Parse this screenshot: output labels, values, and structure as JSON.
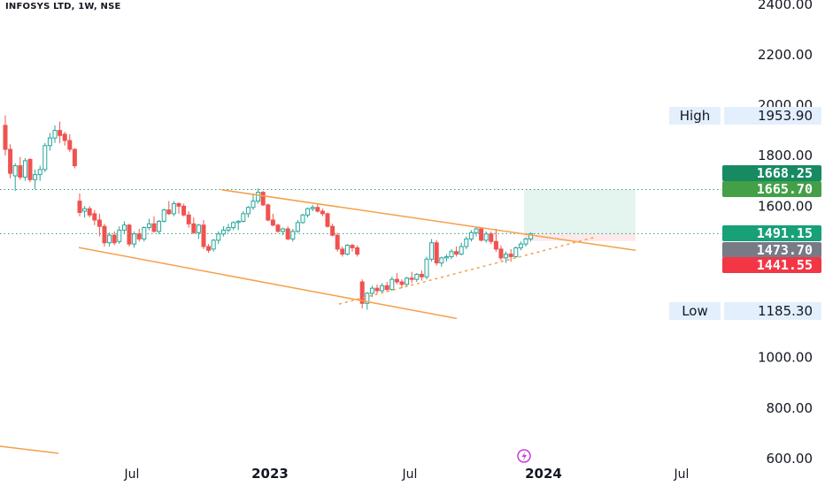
{
  "header": {
    "ticker_label": "INFOSYS LTD, 1W, NSE"
  },
  "colors": {
    "up": "#26a69a",
    "down": "#ef5350",
    "trendline": "#f5a04b",
    "tag_top": "#178a62",
    "tag_green": "#43a047",
    "tag_price": "#18a078",
    "tag_grey": "#787b86",
    "tag_red": "#f23645",
    "hl_bg": "#e3effd",
    "target_zone": "#e4f5f0",
    "stop_zone": "#fde9ea",
    "dotted_line": "#2e9d73",
    "event_icon": "#c53ed6"
  },
  "chart_data": {
    "type": "candlestick",
    "title": "INFOSYS LTD, 1W, NSE",
    "y_axis": {
      "range": [
        600,
        2420
      ],
      "ticks": [
        "2400.00",
        "2200.00",
        "2000.00",
        "1800.00",
        "1600.00",
        "1000.00",
        "800.00",
        "600.00"
      ]
    },
    "x_axis": {
      "ticks": [
        {
          "label": "Jul",
          "bold": false
        },
        {
          "label": "2023",
          "bold": true
        },
        {
          "label": "Jul",
          "bold": false
        },
        {
          "label": "2024",
          "bold": true
        },
        {
          "label": "Jul",
          "bold": false
        }
      ]
    },
    "price_tags": [
      {
        "label": "1668.25",
        "value": 1668.25,
        "color_key": "tag_top"
      },
      {
        "label": "1665.70",
        "value": 1665.7,
        "color_key": "tag_green"
      },
      {
        "label": "1491.15",
        "value": 1491.15,
        "color_key": "tag_price"
      },
      {
        "label": "1473.70",
        "value": 1473.7,
        "color_key": "tag_grey"
      },
      {
        "label": "1441.55",
        "value": 1441.55,
        "color_key": "tag_red"
      }
    ],
    "high_low": [
      {
        "name": "High",
        "value_label": "1953.90",
        "value": 1953.9
      },
      {
        "name": "Low",
        "value_label": "1185.30",
        "value": 1185.3
      }
    ],
    "horizontal_lines": [
      1665.7,
      1491.15
    ],
    "position_zone": {
      "entry": 1491.15,
      "target": 1665.7,
      "stop": 1462
    },
    "candles": [
      [
        1920,
        1960,
        1800,
        1825
      ],
      [
        1825,
        1845,
        1710,
        1730
      ],
      [
        1720,
        1770,
        1660,
        1760
      ],
      [
        1760,
        1795,
        1705,
        1715
      ],
      [
        1715,
        1790,
        1700,
        1780
      ],
      [
        1785,
        1790,
        1695,
        1705
      ],
      [
        1705,
        1745,
        1665,
        1725
      ],
      [
        1725,
        1760,
        1700,
        1745
      ],
      [
        1745,
        1850,
        1735,
        1840
      ],
      [
        1840,
        1890,
        1820,
        1870
      ],
      [
        1870,
        1920,
        1850,
        1900
      ],
      [
        1900,
        1935,
        1850,
        1880
      ],
      [
        1885,
        1895,
        1840,
        1860
      ],
      [
        1860,
        1885,
        1815,
        1825
      ],
      [
        1825,
        1830,
        1750,
        1760
      ],
      [
        1620,
        1650,
        1560,
        1575
      ],
      [
        1580,
        1600,
        1555,
        1590
      ],
      [
        1590,
        1600,
        1555,
        1565
      ],
      [
        1570,
        1585,
        1525,
        1545
      ],
      [
        1545,
        1570,
        1480,
        1520
      ],
      [
        1520,
        1530,
        1440,
        1455
      ],
      [
        1455,
        1495,
        1440,
        1485
      ],
      [
        1485,
        1500,
        1445,
        1455
      ],
      [
        1460,
        1520,
        1450,
        1505
      ],
      [
        1505,
        1540,
        1490,
        1525
      ],
      [
        1525,
        1530,
        1440,
        1450
      ],
      [
        1450,
        1500,
        1435,
        1490
      ],
      [
        1490,
        1510,
        1460,
        1470
      ],
      [
        1470,
        1520,
        1460,
        1515
      ],
      [
        1515,
        1550,
        1505,
        1530
      ],
      [
        1530,
        1560,
        1495,
        1500
      ],
      [
        1500,
        1545,
        1490,
        1540
      ],
      [
        1540,
        1590,
        1535,
        1585
      ],
      [
        1585,
        1620,
        1565,
        1570
      ],
      [
        1570,
        1620,
        1560,
        1610
      ],
      [
        1610,
        1615,
        1570,
        1600
      ],
      [
        1600,
        1610,
        1560,
        1565
      ],
      [
        1565,
        1580,
        1515,
        1530
      ],
      [
        1530,
        1555,
        1490,
        1495
      ],
      [
        1495,
        1530,
        1470,
        1525
      ],
      [
        1525,
        1545,
        1430,
        1440
      ],
      [
        1440,
        1450,
        1415,
        1425
      ],
      [
        1430,
        1470,
        1420,
        1465
      ],
      [
        1465,
        1500,
        1450,
        1490
      ],
      [
        1490,
        1520,
        1480,
        1505
      ],
      [
        1505,
        1530,
        1495,
        1515
      ],
      [
        1515,
        1540,
        1505,
        1535
      ],
      [
        1535,
        1545,
        1505,
        1540
      ],
      [
        1540,
        1580,
        1535,
        1570
      ],
      [
        1570,
        1600,
        1555,
        1595
      ],
      [
        1595,
        1650,
        1585,
        1620
      ],
      [
        1620,
        1670,
        1610,
        1655
      ],
      [
        1655,
        1660,
        1600,
        1605
      ],
      [
        1605,
        1610,
        1540,
        1545
      ],
      [
        1545,
        1570,
        1520,
        1525
      ],
      [
        1525,
        1530,
        1495,
        1500
      ],
      [
        1500,
        1515,
        1485,
        1510
      ],
      [
        1510,
        1520,
        1465,
        1470
      ],
      [
        1470,
        1510,
        1460,
        1500
      ],
      [
        1500,
        1545,
        1495,
        1535
      ],
      [
        1535,
        1570,
        1530,
        1565
      ],
      [
        1565,
        1595,
        1555,
        1590
      ],
      [
        1590,
        1605,
        1580,
        1595
      ],
      [
        1595,
        1610,
        1575,
        1580
      ],
      [
        1580,
        1590,
        1560,
        1570
      ],
      [
        1570,
        1575,
        1515,
        1520
      ],
      [
        1520,
        1530,
        1480,
        1485
      ],
      [
        1485,
        1495,
        1420,
        1430
      ],
      [
        1430,
        1440,
        1400,
        1410
      ],
      [
        1410,
        1450,
        1405,
        1445
      ],
      [
        1445,
        1450,
        1420,
        1435
      ],
      [
        1435,
        1445,
        1400,
        1410
      ],
      [
        1300,
        1310,
        1195,
        1215
      ],
      [
        1215,
        1260,
        1190,
        1255
      ],
      [
        1255,
        1285,
        1240,
        1275
      ],
      [
        1275,
        1290,
        1250,
        1265
      ],
      [
        1265,
        1295,
        1255,
        1285
      ],
      [
        1285,
        1300,
        1260,
        1270
      ],
      [
        1270,
        1320,
        1265,
        1310
      ],
      [
        1310,
        1335,
        1290,
        1300
      ],
      [
        1300,
        1310,
        1275,
        1290
      ],
      [
        1290,
        1320,
        1280,
        1315
      ],
      [
        1315,
        1340,
        1295,
        1310
      ],
      [
        1310,
        1335,
        1300,
        1330
      ],
      [
        1330,
        1345,
        1305,
        1320
      ],
      [
        1320,
        1400,
        1310,
        1390
      ],
      [
        1390,
        1470,
        1380,
        1455
      ],
      [
        1455,
        1465,
        1365,
        1375
      ],
      [
        1375,
        1400,
        1360,
        1395
      ],
      [
        1395,
        1410,
        1380,
        1400
      ],
      [
        1400,
        1430,
        1390,
        1420
      ],
      [
        1420,
        1440,
        1400,
        1410
      ],
      [
        1410,
        1455,
        1405,
        1440
      ],
      [
        1440,
        1480,
        1430,
        1470
      ],
      [
        1470,
        1505,
        1460,
        1495
      ],
      [
        1495,
        1520,
        1480,
        1510
      ],
      [
        1510,
        1515,
        1460,
        1465
      ],
      [
        1465,
        1500,
        1455,
        1490
      ],
      [
        1490,
        1500,
        1450,
        1460
      ],
      [
        1460,
        1510,
        1420,
        1430
      ],
      [
        1430,
        1445,
        1385,
        1395
      ],
      [
        1395,
        1420,
        1375,
        1410
      ],
      [
        1410,
        1430,
        1380,
        1400
      ],
      [
        1400,
        1440,
        1395,
        1435
      ],
      [
        1435,
        1460,
        1425,
        1450
      ],
      [
        1450,
        1475,
        1440,
        1470
      ],
      [
        1470,
        1495,
        1460,
        1491.15
      ]
    ]
  }
}
